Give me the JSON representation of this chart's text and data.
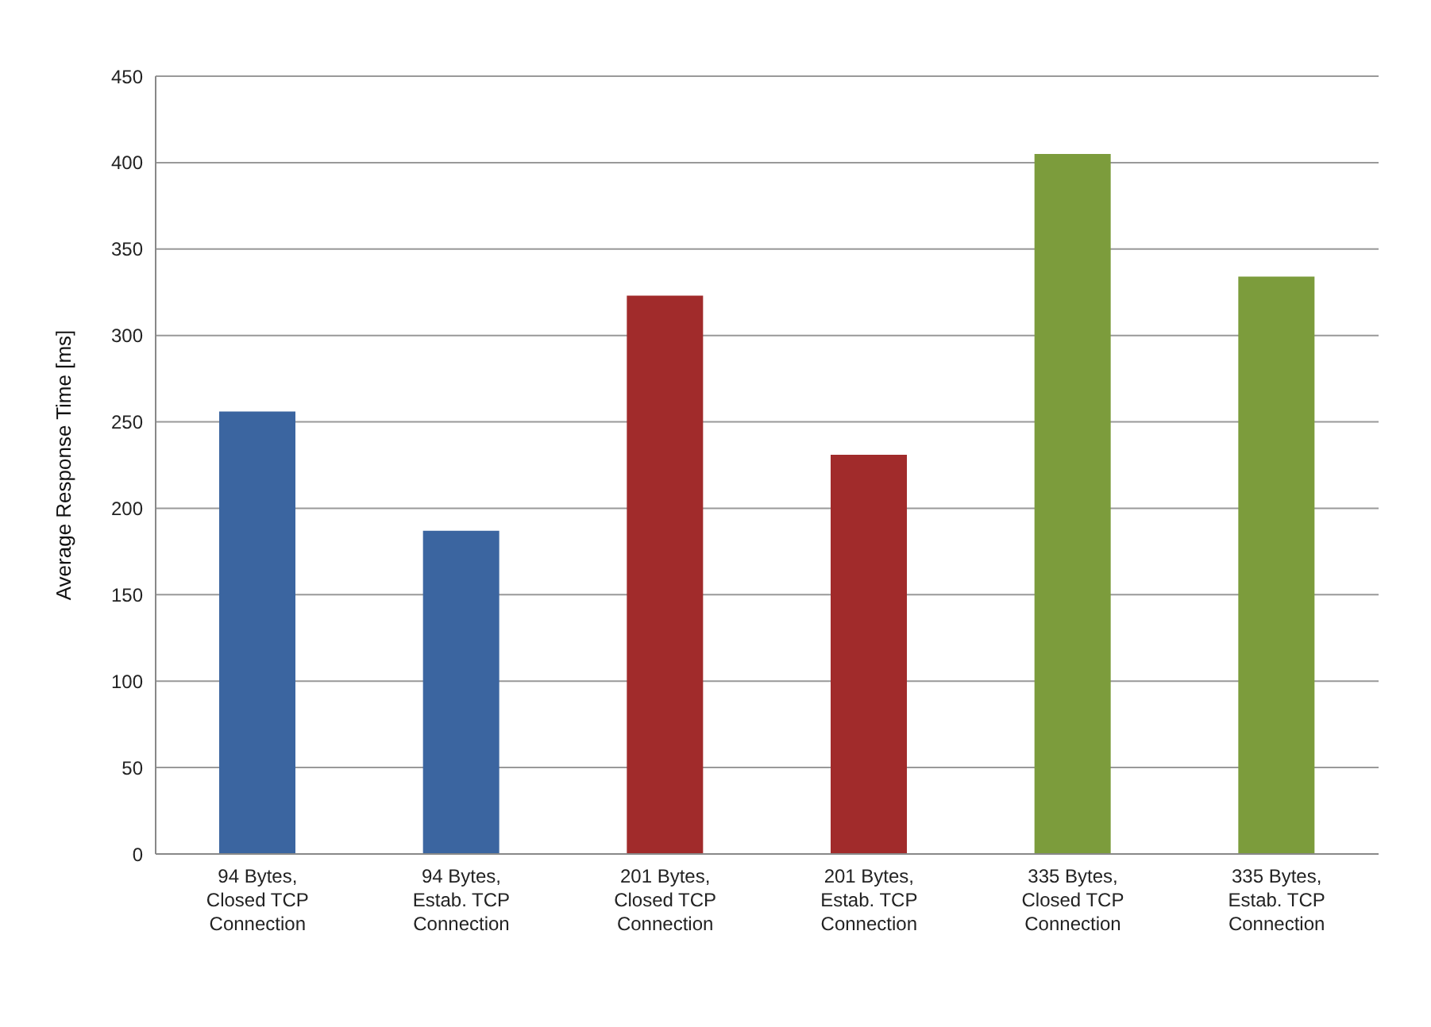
{
  "chart_data": {
    "type": "bar",
    "ylabel": "Average Response Time [ms]",
    "categories": [
      "94 Bytes, Closed TCP Connection",
      "94 Bytes, Estab. TCP Connection",
      "201 Bytes, Closed TCP Connection",
      "201 Bytes, Estab. TCP Connection",
      "335 Bytes, Closed TCP Connection",
      "335 Bytes, Estab. TCP Connection"
    ],
    "values": [
      256,
      187,
      323,
      231,
      405,
      334
    ],
    "colors": [
      "#3b65a0",
      "#3b65a0",
      "#a12b2b",
      "#a12b2b",
      "#7c9c3c",
      "#7c9c3c"
    ],
    "ylim": [
      0,
      450
    ],
    "yticks": [
      0,
      50,
      100,
      150,
      200,
      250,
      300,
      350,
      400,
      450
    ],
    "grid": "y"
  }
}
